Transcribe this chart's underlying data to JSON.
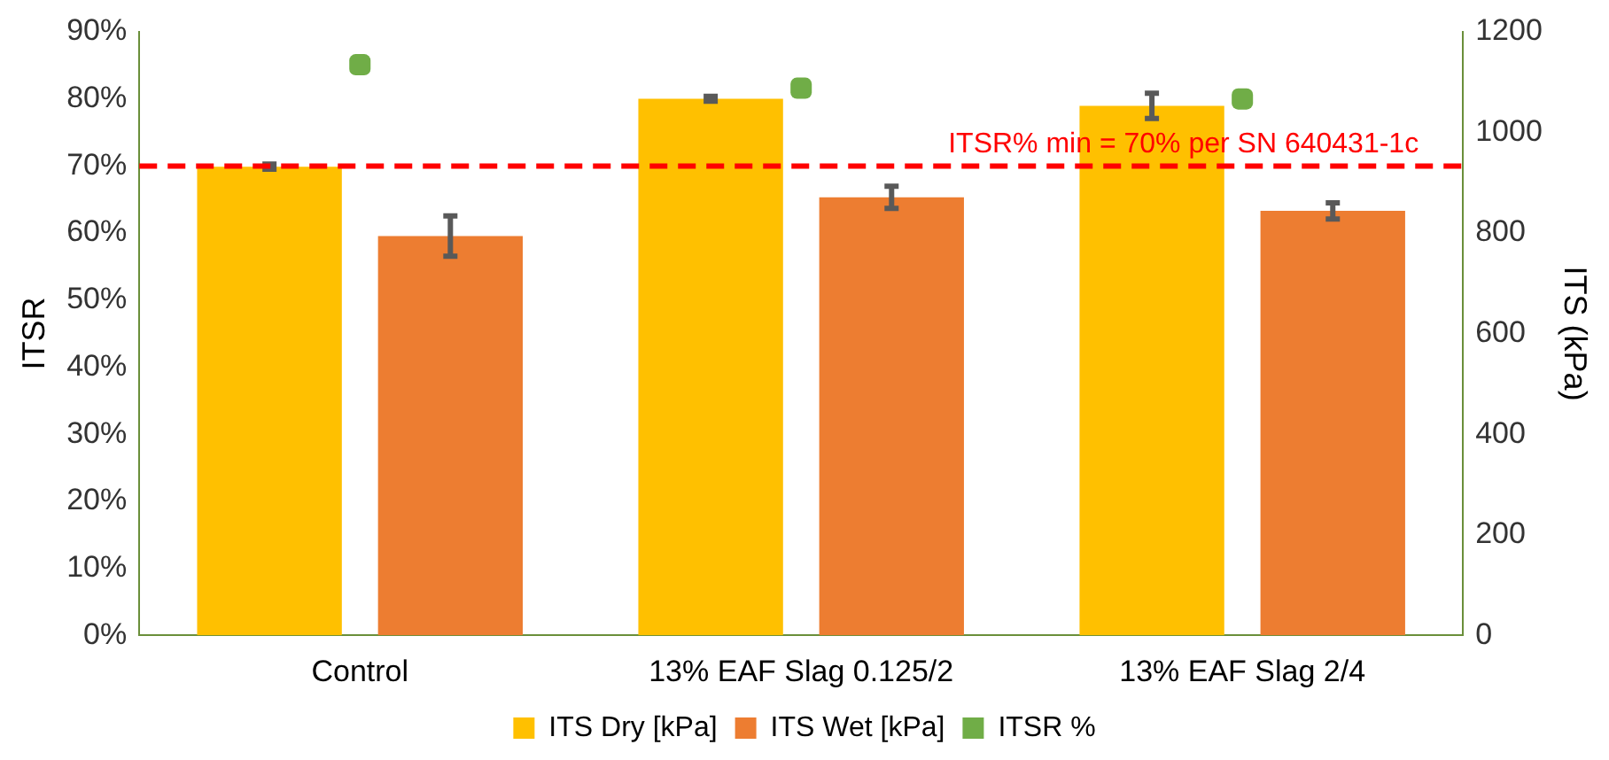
{
  "chart_data": {
    "type": "bar",
    "ylabel": "ITSR",
    "y2label": "ITS (kPa)",
    "categories": [
      "Control",
      "13% EAF Slag 0.125/2",
      "13% EAF Slag 2/4"
    ],
    "series": [
      {
        "name": "ITS Dry [kPa]",
        "color": "#ffc000",
        "axis": "y2",
        "values": [
          932,
          1067,
          1053
        ],
        "errors": [
          5,
          5,
          25
        ]
      },
      {
        "name": "ITS Wet [kPa]",
        "color": "#ed7d31",
        "axis": "y2",
        "values": [
          794,
          871,
          844
        ],
        "errors": [
          40,
          22,
          16
        ]
      },
      {
        "name": "ITSR %",
        "type": "scatter",
        "color": "#70ad47",
        "values": [
          85.1,
          81.6,
          80.0
        ]
      }
    ],
    "ylim": [
      0,
      90
    ],
    "yticks": [
      {
        "value": 0,
        "label": "0%"
      },
      {
        "value": 10,
        "label": "10%"
      },
      {
        "value": 20,
        "label": "20%"
      },
      {
        "value": 30,
        "label": "30%"
      },
      {
        "value": 40,
        "label": "40%"
      },
      {
        "value": 50,
        "label": "50%"
      },
      {
        "value": 60,
        "label": "60%"
      },
      {
        "value": 70,
        "label": "70%"
      },
      {
        "value": 80,
        "label": "80%"
      },
      {
        "value": 90,
        "label": "90%"
      }
    ],
    "y2lim": [
      0,
      1200
    ],
    "y2ticks": [
      0,
      200,
      400,
      600,
      800,
      1000,
      1200
    ],
    "ref_lines": [
      {
        "axis": "y",
        "value": 70,
        "label": "ITSR% min = 70% per SN 640431-1c",
        "color": "#ff0000",
        "line_style": "dashed"
      }
    ],
    "grid": false,
    "legend": "bottom",
    "marker": "square"
  }
}
